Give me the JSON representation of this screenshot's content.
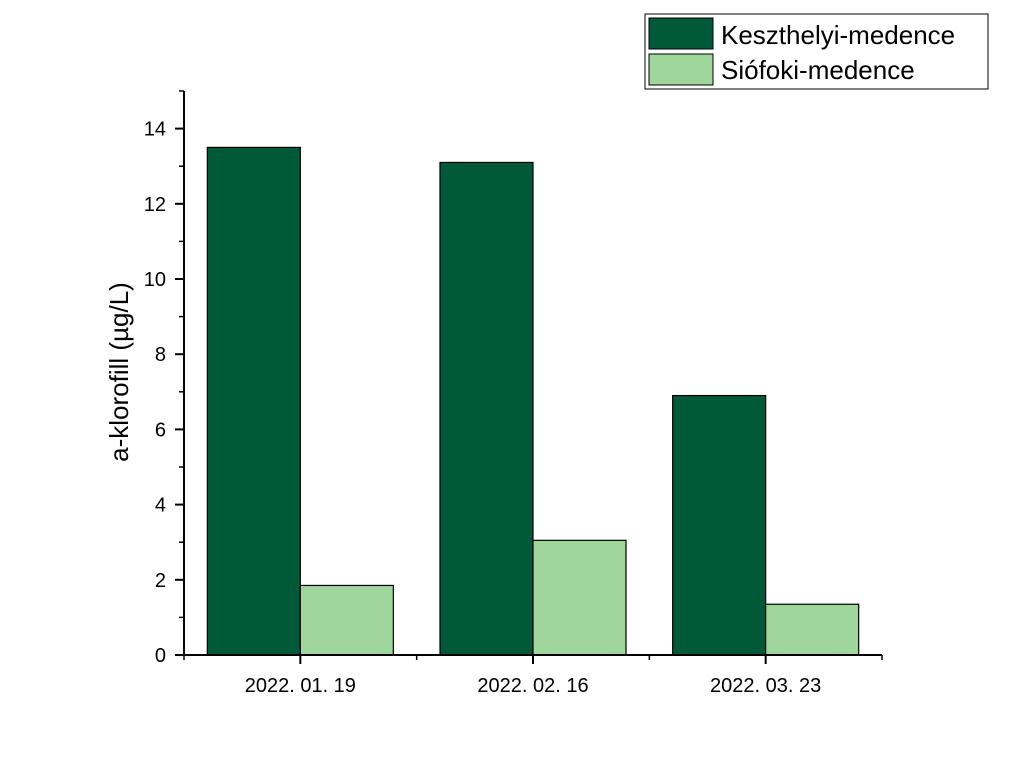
{
  "chart_data": {
    "type": "bar",
    "categories": [
      "2022. 01. 19",
      "2022. 02. 16",
      "2022. 03. 23"
    ],
    "series": [
      {
        "name": "Keszthelyi-medence",
        "values": [
          13.5,
          13.1,
          6.9
        ],
        "color": "#005a3a"
      },
      {
        "name": "Siófoki-medence",
        "values": [
          1.85,
          3.05,
          1.35
        ],
        "color": "#9ed69c"
      }
    ],
    "title": "",
    "xlabel": "",
    "ylabel": "a-klorofill (µg/L)",
    "ylim": [
      0,
      15
    ],
    "yticks": [
      "0",
      "2",
      "4",
      "6",
      "8",
      "10",
      "12",
      "14"
    ],
    "grid": false,
    "legend_position": "top-right"
  }
}
